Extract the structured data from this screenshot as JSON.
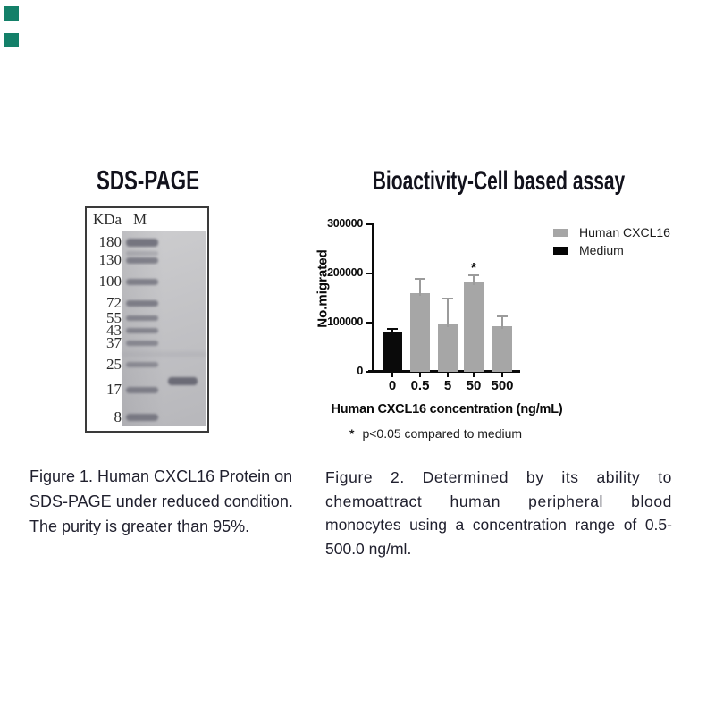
{
  "watermark": {
    "color": "#148069"
  },
  "figure1": {
    "title": "SDS-PAGE",
    "gel": {
      "unit_label": "KDa",
      "marker_lane_label": "M",
      "ladder_labels": [
        "180",
        "130",
        "100",
        "72",
        "55",
        "43",
        "37",
        "25",
        "17",
        "8"
      ]
    },
    "caption_lines": [
      "Figure 1. Human CXCL16 Protein on",
      "SDS-PAGE under reduced condition.",
      "The purity is greater than 95%."
    ]
  },
  "figure2": {
    "caption_lines": [
      "Figure 2. Determined by its ability to",
      "chemoattract human peripheral blood",
      "monocytes using a concentration range of 0.5-",
      "500.0 ng/ml."
    ]
  },
  "chart_data": {
    "type": "bar",
    "title": "Bioactivity-Cell based assay",
    "xlabel": "Human CXCL16 concentration (ng/mL)",
    "ylabel": "No.migrated",
    "ylim": [
      0,
      300000
    ],
    "grid": false,
    "yticks": [
      0,
      100000,
      200000,
      300000
    ],
    "ytick_labels": [
      "0",
      "100000",
      "200000",
      "300000"
    ],
    "categories": [
      "0",
      "0.5",
      "5",
      "50",
      "500"
    ],
    "bars": [
      {
        "category": "0",
        "series": "Medium",
        "value": 80000,
        "error_top": 87000,
        "significant": false,
        "color": "#0a0a0a"
      },
      {
        "category": "0.5",
        "series": "Human CXCL16",
        "value": 160000,
        "error_top": 190000,
        "significant": false,
        "color": "#a6a6a6"
      },
      {
        "category": "5",
        "series": "Human CXCL16",
        "value": 97000,
        "error_top": 149000,
        "significant": false,
        "color": "#a6a6a6"
      },
      {
        "category": "50",
        "series": "Human CXCL16",
        "value": 181000,
        "error_top": 196000,
        "significant": true,
        "color": "#a6a6a6"
      },
      {
        "category": "500",
        "series": "Human CXCL16",
        "value": 92000,
        "error_top": 112000,
        "significant": false,
        "color": "#a6a6a6"
      }
    ],
    "legend": {
      "position": "right",
      "items": [
        {
          "label": "Human CXCL16",
          "color": "#a6a6a6"
        },
        {
          "label": "Medium",
          "color": "#050505"
        }
      ]
    },
    "significance_marker": "*",
    "footnote_marker": "*",
    "footnote_text": "p<0.05 compared to medium"
  }
}
